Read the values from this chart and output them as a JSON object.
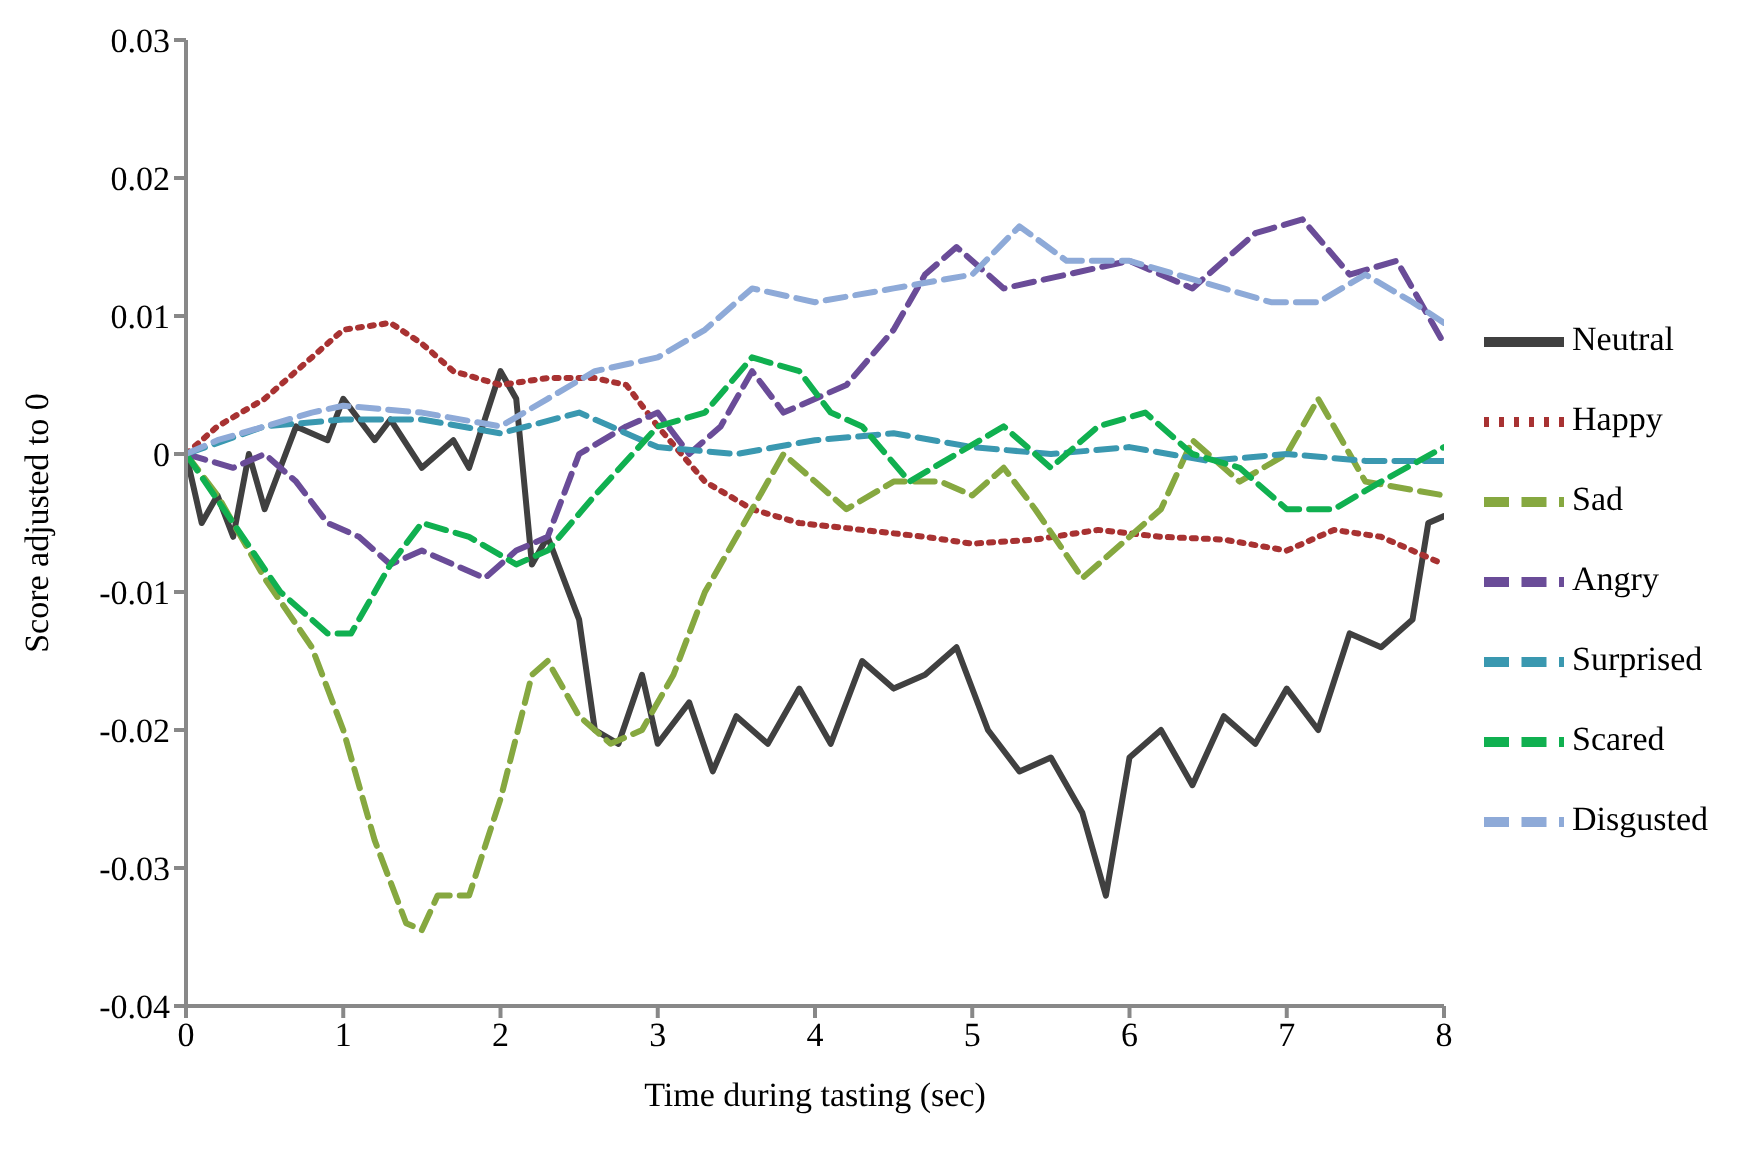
{
  "chart_data": {
    "type": "line",
    "xlabel": "Time during tasting (sec)",
    "ylabel": "Score adjusted to 0",
    "xlim": [
      0,
      8
    ],
    "xticks": [
      0,
      1,
      2,
      3,
      4,
      5,
      6,
      7,
      8
    ],
    "ylim": [
      -0.04,
      0.03
    ],
    "yticks": [
      {
        "value": -0.04,
        "label": "-0.04"
      },
      {
        "value": -0.03,
        "label": "-0.03"
      },
      {
        "value": -0.02,
        "label": "-0.02"
      },
      {
        "value": -0.01,
        "label": "-0.01"
      },
      {
        "value": 0,
        "label": "0"
      },
      {
        "value": 0.01,
        "label": "0.01"
      },
      {
        "value": 0.02,
        "label": "0.02"
      },
      {
        "value": 0.03,
        "label": "0.03"
      }
    ],
    "grid": false,
    "legend": "right",
    "marker": "none",
    "series": [
      {
        "name": "Neutral",
        "color": "#404040",
        "line_style": "solid",
        "x": [
          0,
          0.1,
          0.2,
          0.3,
          0.4,
          0.5,
          0.6,
          0.7,
          0.9,
          1.0,
          1.2,
          1.3,
          1.5,
          1.7,
          1.8,
          2.0,
          2.1,
          2.2,
          2.3,
          2.5,
          2.6,
          2.75,
          2.9,
          3.0,
          3.2,
          3.35,
          3.5,
          3.7,
          3.9,
          4.1,
          4.3,
          4.5,
          4.7,
          4.9,
          5.1,
          5.3,
          5.5,
          5.7,
          5.85,
          6.0,
          6.2,
          6.4,
          6.6,
          6.8,
          7.0,
          7.2,
          7.4,
          7.6,
          7.8,
          7.9,
          8.0
        ],
        "values": [
          0,
          -0.005,
          -0.003,
          -0.006,
          0,
          -0.004,
          -0.001,
          0.002,
          0.001,
          0.004,
          0.001,
          0.0025,
          -0.001,
          0.001,
          -0.001,
          0.006,
          0.004,
          -0.008,
          -0.006,
          -0.012,
          -0.02,
          -0.021,
          -0.016,
          -0.021,
          -0.018,
          -0.023,
          -0.019,
          -0.021,
          -0.017,
          -0.021,
          -0.015,
          -0.017,
          -0.016,
          -0.014,
          -0.02,
          -0.023,
          -0.022,
          -0.026,
          -0.032,
          -0.022,
          -0.02,
          -0.024,
          -0.019,
          -0.021,
          -0.017,
          -0.02,
          -0.013,
          -0.014,
          -0.012,
          -0.005,
          -0.0045
        ]
      },
      {
        "name": "Happy",
        "color": "#a83232",
        "line_style": "dotted",
        "x": [
          0,
          0.2,
          0.5,
          0.8,
          1.0,
          1.3,
          1.5,
          1.7,
          2.0,
          2.3,
          2.6,
          2.8,
          3.0,
          3.3,
          3.6,
          3.9,
          4.3,
          4.7,
          5.0,
          5.4,
          5.8,
          6.2,
          6.6,
          7.0,
          7.3,
          7.6,
          8.0
        ],
        "values": [
          0,
          0.002,
          0.004,
          0.007,
          0.009,
          0.0095,
          0.008,
          0.006,
          0.005,
          0.0055,
          0.0055,
          0.005,
          0.002,
          -0.002,
          -0.004,
          -0.005,
          -0.0055,
          -0.006,
          -0.0065,
          -0.0062,
          -0.0055,
          -0.006,
          -0.0062,
          -0.007,
          -0.0055,
          -0.006,
          -0.008
        ]
      },
      {
        "name": "Sad",
        "color": "#86a840",
        "line_style": "dashed",
        "x": [
          0,
          0.2,
          0.5,
          0.8,
          1.0,
          1.2,
          1.4,
          1.5,
          1.6,
          1.8,
          2.0,
          2.2,
          2.3,
          2.5,
          2.7,
          2.9,
          3.1,
          3.3,
          3.6,
          3.8,
          4.0,
          4.2,
          4.5,
          4.8,
          5.0,
          5.2,
          5.4,
          5.7,
          6.0,
          6.2,
          6.4,
          6.7,
          7.0,
          7.2,
          7.5,
          8.0
        ],
        "values": [
          0,
          -0.003,
          -0.009,
          -0.014,
          -0.02,
          -0.028,
          -0.034,
          -0.0345,
          -0.032,
          -0.032,
          -0.025,
          -0.016,
          -0.015,
          -0.019,
          -0.021,
          -0.02,
          -0.016,
          -0.01,
          -0.004,
          0,
          -0.002,
          -0.004,
          -0.002,
          -0.002,
          -0.003,
          -0.001,
          -0.004,
          -0.009,
          -0.006,
          -0.004,
          0.001,
          -0.002,
          0,
          0.004,
          -0.002,
          -0.003
        ]
      },
      {
        "name": "Angry",
        "color": "#6a4c98",
        "line_style": "dashed",
        "x": [
          0,
          0.3,
          0.5,
          0.7,
          0.9,
          1.1,
          1.3,
          1.5,
          1.7,
          1.9,
          2.1,
          2.3,
          2.5,
          2.8,
          3.0,
          3.2,
          3.4,
          3.6,
          3.8,
          4.2,
          4.5,
          4.7,
          4.9,
          5.2,
          5.6,
          6.0,
          6.4,
          6.8,
          7.1,
          7.4,
          7.7,
          8.0
        ],
        "values": [
          0,
          -0.001,
          0,
          -0.002,
          -0.005,
          -0.006,
          -0.008,
          -0.007,
          -0.008,
          -0.009,
          -0.007,
          -0.006,
          0,
          0.002,
          0.003,
          0,
          0.002,
          0.006,
          0.003,
          0.005,
          0.009,
          0.013,
          0.015,
          0.012,
          0.013,
          0.014,
          0.012,
          0.016,
          0.017,
          0.013,
          0.014,
          0.008
        ]
      },
      {
        "name": "Surprised",
        "color": "#3a98b0",
        "line_style": "dashed",
        "x": [
          0,
          0.5,
          1.0,
          1.5,
          2.0,
          2.5,
          3.0,
          3.5,
          4.0,
          4.5,
          5.0,
          5.5,
          6.0,
          6.5,
          7.0,
          7.5,
          8.0
        ],
        "values": [
          0,
          0.002,
          0.0025,
          0.0025,
          0.0015,
          0.003,
          0.0005,
          0,
          0.001,
          0.0015,
          0.0005,
          0,
          0.0005,
          -0.0005,
          0,
          -0.0005,
          -0.0005
        ]
      },
      {
        "name": "Scared",
        "color": "#10b050",
        "line_style": "dashed",
        "x": [
          0,
          0.3,
          0.6,
          0.9,
          1.05,
          1.3,
          1.5,
          1.8,
          2.1,
          2.3,
          2.6,
          3.0,
          3.3,
          3.6,
          3.9,
          4.1,
          4.3,
          4.6,
          4.9,
          5.2,
          5.5,
          5.8,
          6.1,
          6.4,
          6.7,
          7.0,
          7.3,
          7.6,
          8.0
        ],
        "values": [
          0,
          -0.005,
          -0.01,
          -0.013,
          -0.013,
          -0.008,
          -0.005,
          -0.006,
          -0.008,
          -0.007,
          -0.003,
          0.002,
          0.003,
          0.007,
          0.006,
          0.003,
          0.002,
          -0.002,
          0,
          0.002,
          -0.001,
          0.002,
          0.003,
          0,
          -0.001,
          -0.004,
          -0.004,
          -0.002,
          0.0005
        ]
      },
      {
        "name": "Disgusted",
        "color": "#8eaad8",
        "line_style": "dashed",
        "x": [
          0,
          0.2,
          0.5,
          0.8,
          1.0,
          1.5,
          2.0,
          2.3,
          2.6,
          3.0,
          3.3,
          3.6,
          4.0,
          4.5,
          5.0,
          5.3,
          5.6,
          6.0,
          6.3,
          6.6,
          6.9,
          7.2,
          7.5,
          7.8,
          8.0
        ],
        "values": [
          0,
          0.001,
          0.002,
          0.003,
          0.0035,
          0.003,
          0.002,
          0.004,
          0.006,
          0.007,
          0.009,
          0.012,
          0.011,
          0.012,
          0.013,
          0.0165,
          0.014,
          0.014,
          0.013,
          0.012,
          0.011,
          0.011,
          0.013,
          0.011,
          0.0095
        ]
      }
    ]
  }
}
